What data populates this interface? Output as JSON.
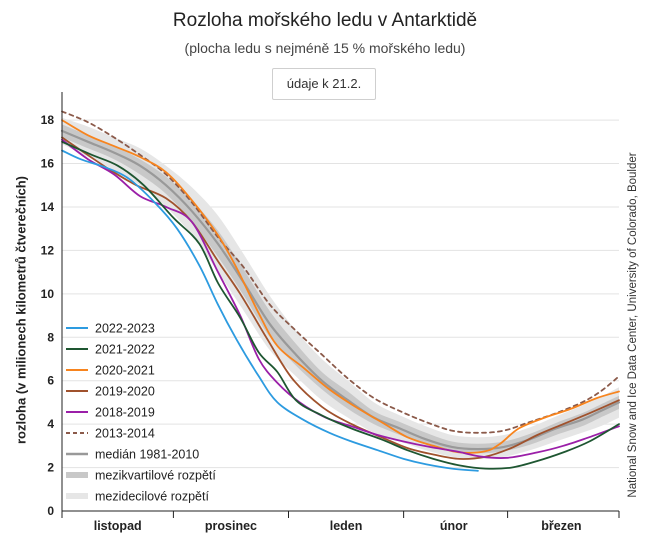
{
  "header": {
    "title": "Rozloha mořského ledu v Antarktidě",
    "subtitle": "(plocha ledu s nejméně 15 % mořského ledu)",
    "date_note": "údaje k 21.2."
  },
  "credit": "National Snow and Ice Data Center, University of Colorado, Boulder",
  "chart_data": {
    "type": "line",
    "title": "Rozloha mořského ledu v Antarktidě",
    "subtitle": "(plocha ledu s nejméně 15 % mořského ledu)",
    "ylabel": "rozloha (v milionech kilometrů čtverečních)",
    "xlabel": "",
    "ylim": [
      0,
      19.2
    ],
    "yticks": [
      0,
      2,
      4,
      6,
      8,
      10,
      12,
      14,
      16,
      18
    ],
    "xlim": [
      0,
      150
    ],
    "x_unit_note": "days from 1 November",
    "x_month_labels": [
      {
        "label": "listopad",
        "x": 15
      },
      {
        "label": "prosinec",
        "x": 45.5
      },
      {
        "label": "leden",
        "x": 76.5
      },
      {
        "label": "únor",
        "x": 105.5
      },
      {
        "label": "březen",
        "x": 134.5
      }
    ],
    "x_month_boundaries": [
      30,
      61,
      92,
      120
    ],
    "grid": "horizontal",
    "legend_position": "lower-left",
    "series": [
      {
        "name": "2022-2023",
        "color": "#2d9be0",
        "style": "solid",
        "x": [
          0,
          5,
          12,
          18,
          25,
          31,
          37,
          42,
          47,
          53,
          58,
          65,
          72,
          78,
          85,
          92,
          98,
          105,
          112
        ],
        "y": [
          16.6,
          16.2,
          15.8,
          15.3,
          14.2,
          13.0,
          11.3,
          9.5,
          7.9,
          6.2,
          5.0,
          4.2,
          3.6,
          3.2,
          2.8,
          2.4,
          2.15,
          1.95,
          1.85
        ]
      },
      {
        "name": "2021-2022",
        "color": "#1e5631",
        "style": "solid",
        "x": [
          0,
          8,
          15,
          22,
          30,
          37,
          42,
          48,
          53,
          58,
          63,
          70,
          78,
          86,
          93,
          100,
          107,
          114,
          121,
          128,
          135,
          142,
          150
        ],
        "y": [
          17.0,
          16.4,
          15.9,
          15.0,
          13.5,
          12.3,
          10.5,
          8.9,
          7.3,
          6.4,
          5.1,
          4.4,
          3.8,
          3.3,
          2.8,
          2.4,
          2.1,
          1.95,
          2.0,
          2.3,
          2.7,
          3.2,
          4.0
        ]
      },
      {
        "name": "2020-2021",
        "color": "#f7841e",
        "style": "solid",
        "x": [
          0,
          7,
          14,
          21,
          28,
          35,
          42,
          47,
          53,
          58,
          65,
          72,
          79,
          86,
          93,
          100,
          107,
          114,
          118,
          123,
          130,
          137,
          144,
          150
        ],
        "y": [
          18.0,
          17.3,
          16.8,
          16.3,
          15.6,
          14.3,
          12.7,
          11.2,
          9.1,
          7.6,
          6.6,
          5.6,
          4.8,
          4.1,
          3.4,
          3.0,
          2.7,
          2.75,
          3.1,
          3.8,
          4.3,
          4.7,
          5.2,
          5.5
        ]
      },
      {
        "name": "2019-2020",
        "color": "#a0522d",
        "style": "solid",
        "x": [
          0,
          6,
          13,
          20,
          28,
          35,
          42,
          48,
          55,
          62,
          70,
          78,
          86,
          93,
          100,
          107,
          114,
          121,
          128,
          135,
          142,
          150
        ],
        "y": [
          17.2,
          16.5,
          15.7,
          15.0,
          14.4,
          13.3,
          11.5,
          10.0,
          8.0,
          6.1,
          4.8,
          4.0,
          3.4,
          2.9,
          2.6,
          2.4,
          2.5,
          2.9,
          3.5,
          4.0,
          4.5,
          5.1
        ]
      },
      {
        "name": "2018-2019",
        "color": "#9b1fa8",
        "style": "solid",
        "x": [
          0,
          7,
          14,
          21,
          28,
          35,
          42,
          48,
          53,
          58,
          64,
          71,
          78,
          85,
          92,
          99,
          106,
          113,
          120,
          128,
          135,
          142,
          150
        ],
        "y": [
          17.1,
          16.2,
          15.5,
          14.5,
          14.0,
          13.3,
          11.0,
          9.0,
          7.0,
          5.9,
          5.0,
          4.3,
          3.9,
          3.5,
          3.2,
          2.95,
          2.75,
          2.5,
          2.45,
          2.7,
          3.0,
          3.4,
          3.9
        ]
      },
      {
        "name": "2013-2014",
        "color": "#8b5a4a",
        "style": "dashed",
        "x": [
          0,
          7,
          14,
          21,
          28,
          35,
          42,
          49,
          56,
          63,
          70,
          77,
          84,
          91,
          98,
          105,
          112,
          119,
          126,
          133,
          140,
          145,
          150
        ],
        "y": [
          18.4,
          17.9,
          17.2,
          16.4,
          15.5,
          14.2,
          12.6,
          11.2,
          9.5,
          8.3,
          7.2,
          6.1,
          5.2,
          4.6,
          4.1,
          3.7,
          3.6,
          3.7,
          4.1,
          4.5,
          5.0,
          5.5,
          6.2
        ]
      },
      {
        "name": "medián 1981-2010",
        "color": "#999999",
        "style": "median",
        "x": [
          0,
          7,
          14,
          21,
          28,
          35,
          42,
          49,
          56,
          63,
          70,
          77,
          84,
          91,
          98,
          105,
          112,
          119,
          126,
          133,
          140,
          145,
          150
        ],
        "y": [
          17.5,
          17.0,
          16.5,
          15.9,
          15.0,
          13.8,
          12.3,
          10.5,
          8.6,
          7.2,
          6.0,
          5.1,
          4.3,
          3.8,
          3.3,
          2.95,
          2.85,
          2.95,
          3.3,
          3.8,
          4.2,
          4.6,
          5.0
        ]
      },
      {
        "name": "mezikvartilové rozpětí",
        "color": "#c8c8c8",
        "style": "band",
        "x": [
          0,
          7,
          14,
          21,
          28,
          35,
          42,
          49,
          56,
          63,
          70,
          77,
          84,
          91,
          98,
          105,
          112,
          119,
          126,
          133,
          140,
          145,
          150
        ],
        "lower": [
          17.2,
          16.7,
          16.2,
          15.5,
          14.6,
          13.3,
          11.7,
          9.9,
          8.0,
          6.7,
          5.6,
          4.7,
          4.0,
          3.5,
          3.05,
          2.75,
          2.65,
          2.75,
          3.05,
          3.5,
          3.9,
          4.3,
          4.7
        ],
        "upper": [
          17.8,
          17.3,
          16.8,
          16.2,
          15.4,
          14.3,
          12.9,
          11.1,
          9.2,
          7.7,
          6.4,
          5.5,
          4.6,
          4.1,
          3.6,
          3.2,
          3.1,
          3.2,
          3.55,
          4.05,
          4.5,
          4.9,
          5.3
        ]
      },
      {
        "name": "mezidecilové rozpětí",
        "color": "#e6e6e6",
        "style": "band",
        "x": [
          0,
          7,
          14,
          21,
          28,
          35,
          42,
          49,
          56,
          63,
          70,
          77,
          84,
          91,
          98,
          105,
          112,
          119,
          126,
          133,
          140,
          145,
          150
        ],
        "lower": [
          16.9,
          16.3,
          15.7,
          15.0,
          14.0,
          12.7,
          11.0,
          9.2,
          7.4,
          6.2,
          5.1,
          4.3,
          3.6,
          3.2,
          2.8,
          2.5,
          2.4,
          2.5,
          2.8,
          3.2,
          3.6,
          3.9,
          4.3
        ],
        "upper": [
          18.1,
          17.7,
          17.2,
          16.7,
          15.9,
          14.9,
          13.6,
          11.8,
          9.9,
          8.3,
          7.0,
          6.0,
          5.0,
          4.4,
          3.9,
          3.5,
          3.4,
          3.5,
          3.85,
          4.35,
          4.85,
          5.25,
          5.7
        ]
      }
    ]
  }
}
